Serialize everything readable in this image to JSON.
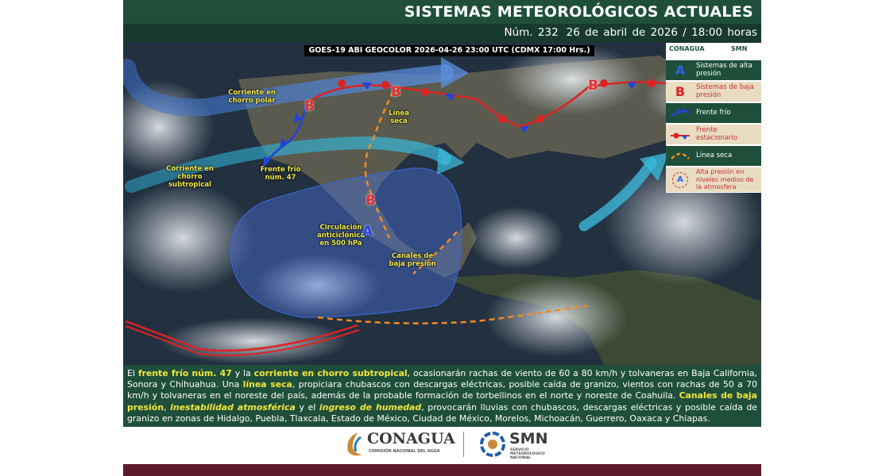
{
  "header": {
    "title": "SISTEMAS METEOROLÓGICOS ACTUALES",
    "number": "Núm. 232",
    "date": "26 de abril de 2026 / 18:00 horas"
  },
  "map": {
    "satellite_label": "GOES-19 ABI GEOCOLOR 2026-04-26 23:00 UTC (CDMX  17:00 Hrs.)",
    "labels": [
      "Corriente en chorro polar",
      "Línea seca",
      "Corriente en chorro subtropical",
      "Frente frío núm. 47",
      "Circulación anticiclónica en 500 hPa",
      "Canales de baja presión"
    ],
    "markers": [
      "B",
      "B",
      "B",
      "B",
      "A"
    ]
  },
  "legend": {
    "logos": [
      "CONAGUA",
      "SMN"
    ],
    "items": [
      {
        "symbol": "A",
        "text": "Sistemas de alta presión"
      },
      {
        "symbol": "B",
        "text": "Sistemas de baja presión"
      },
      {
        "text": "Frente frío"
      },
      {
        "text": "Frente estacionario"
      },
      {
        "text": "Línea seca"
      },
      {
        "symbol": "A",
        "text": "Alta presión en niveles medios de la atmosfera"
      }
    ]
  },
  "description": [
    {
      "text": "El ",
      "style": "normal"
    },
    {
      "text": "frente frío núm. 47",
      "style": "highlight"
    },
    {
      "text": " y la ",
      "style": "normal"
    },
    {
      "text": "corriente en chorro subtropical",
      "style": "highlight"
    },
    {
      "text": ", ocasionarán rachas de viento de 60 a 80 km/h y tolvaneras en Baja California, Sonora y Chihuahua. Una ",
      "style": "normal"
    },
    {
      "text": "línea seca",
      "style": "highlight"
    },
    {
      "text": ", propiciara chubascos con descargas eléctricas, posible caída de granizo, vientos con rachas de 50 a 70 km/h y tolvaneras en el noreste del país, además de la probable formación de torbellinos en el norte y noreste de Coahuila. ",
      "style": "normal"
    },
    {
      "text": "Canales de baja presión",
      "style": "highlight"
    },
    {
      "text": ", ",
      "style": "normal"
    },
    {
      "text": "inestabilidad atmosférica",
      "style": "emphasis"
    },
    {
      "text": " y el ",
      "style": "normal"
    },
    {
      "text": "ingreso de humedad",
      "style": "emphasis"
    },
    {
      "text": ", provocarán lluvias con chubascos, descargas eléctricas y posible caída de granizo en zonas de Hidalgo, Puebla, Tlaxcala, Estado de México, Ciudad de México, Morelos, Michoacán, Guerrero, Oaxaca y Chiapas.",
      "style": "normal"
    }
  ],
  "footer": {
    "conagua": "CONAGUA",
    "conagua_sub": "COMISIÓN NACIONAL DEL AGUA",
    "smn": "SMN",
    "smn_sub": "SERVICIO METEOROLÓGICO NACIONAL"
  }
}
